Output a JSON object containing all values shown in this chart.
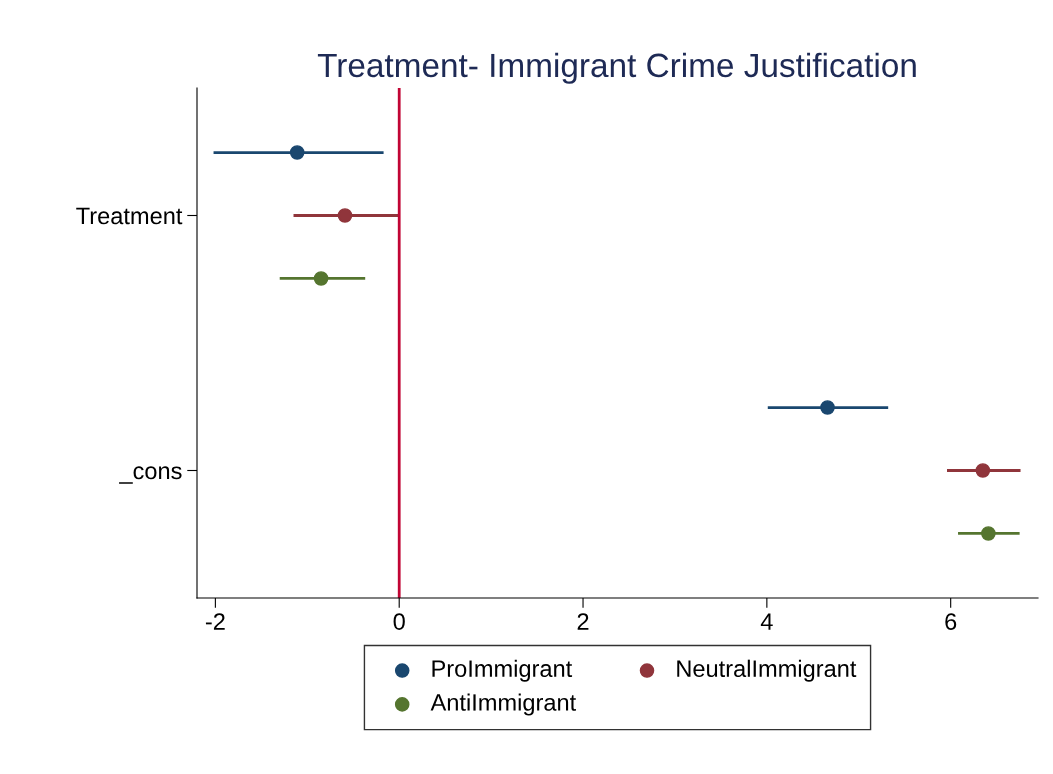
{
  "chart_data": {
    "type": "scatter",
    "title": "Treatment- Immigrant Crime Justification",
    "orientation": "horizontal",
    "categories": [
      "Treatment",
      "_cons"
    ],
    "series": [
      {
        "name": "ProImmigrant",
        "color": "#1a476f",
        "values": [
          -1.11,
          4.66
        ],
        "errors": [
          [
            -2.02,
            -0.17
          ],
          [
            4.01,
            5.32
          ]
        ]
      },
      {
        "name": "NeutralImmigrant",
        "color": "#90353b",
        "values": [
          -0.59,
          6.35
        ],
        "errors": [
          [
            -1.15,
            0.0
          ],
          [
            5.96,
            6.76
          ]
        ]
      },
      {
        "name": "AntiImmigrant",
        "color": "#55752f",
        "values": [
          -0.85,
          6.41
        ],
        "errors": [
          [
            -1.3,
            -0.37
          ],
          [
            6.08,
            6.75
          ]
        ]
      }
    ],
    "xlim": [
      -2.2,
      6.95
    ],
    "xticks": [
      -2,
      0,
      2,
      4,
      6
    ],
    "ref_lines": [
      {
        "axis": "x",
        "value": 0,
        "color": "#c10534"
      }
    ],
    "marker": "circle",
    "grid": false,
    "legend": "bottom"
  }
}
